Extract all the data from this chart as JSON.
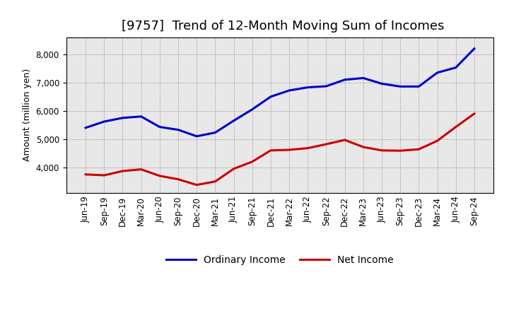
{
  "title": "[9757]  Trend of 12-Month Moving Sum of Incomes",
  "ylabel": "Amount (million yen)",
  "x_labels": [
    "Jun-19",
    "Sep-19",
    "Dec-19",
    "Mar-20",
    "Jun-20",
    "Sep-20",
    "Dec-20",
    "Mar-21",
    "Jun-21",
    "Sep-21",
    "Dec-21",
    "Mar-22",
    "Jun-22",
    "Sep-22",
    "Dec-22",
    "Mar-23",
    "Jun-23",
    "Sep-23",
    "Dec-23",
    "Mar-24",
    "Jun-24",
    "Sep-24"
  ],
  "ordinary_income": [
    5400,
    5620,
    5750,
    5800,
    5430,
    5330,
    5100,
    5230,
    5650,
    6050,
    6500,
    6720,
    6830,
    6870,
    7100,
    7160,
    6960,
    6860,
    6860,
    7350,
    7530,
    8200
  ],
  "net_income": [
    3750,
    3720,
    3870,
    3930,
    3700,
    3580,
    3380,
    3500,
    3950,
    4200,
    4600,
    4620,
    4680,
    4820,
    4970,
    4720,
    4600,
    4590,
    4640,
    4940,
    5430,
    5900
  ],
  "ordinary_color": "#0000cc",
  "net_color": "#cc0000",
  "bg_color": "#ffffff",
  "plot_bg_color": "#e8e8e8",
  "grid_color": "#888888",
  "ylim": [
    3100,
    8600
  ],
  "yticks": [
    4000,
    5000,
    6000,
    7000,
    8000
  ],
  "title_fontsize": 13,
  "label_fontsize": 9,
  "tick_fontsize": 8.5,
  "legend_fontsize": 10,
  "line_width": 2.2
}
